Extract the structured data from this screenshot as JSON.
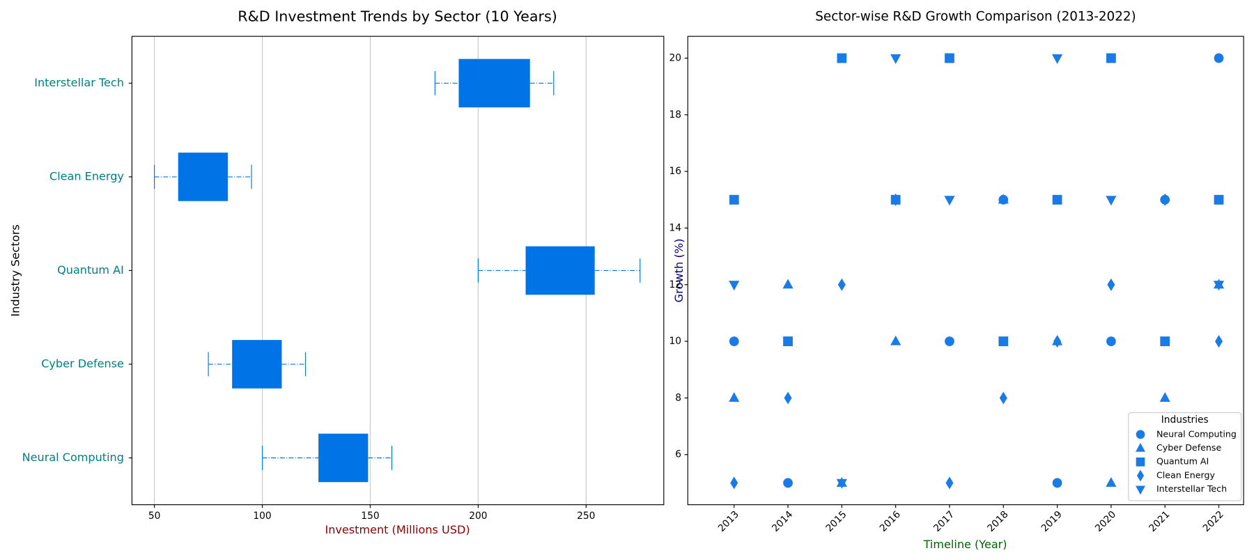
{
  "chart_data": [
    {
      "type": "box",
      "title": "R&D Investment Trends by Sector (10 Years)",
      "x_label": "Investment (Millions USD)",
      "y_label": "Industry Sectors",
      "categories": [
        "Neural Computing",
        "Cyber Defense",
        "Quantum AI",
        "Clean Energy",
        "Interstellar Tech"
      ],
      "min": [
        100,
        75,
        200,
        50,
        180
      ],
      "q1": [
        126,
        86,
        222,
        61,
        191
      ],
      "q3": [
        149,
        109,
        254,
        84,
        224
      ],
      "max": [
        160,
        120,
        275,
        95,
        235
      ],
      "color": "#0073e6",
      "xlim": [
        39.6,
        286
      ],
      "xticks": [
        50,
        100,
        150,
        200,
        250
      ],
      "grid": true
    },
    {
      "type": "scatter",
      "title": "Sector-wise R&D Growth Comparison (2013-2022)",
      "x_label": "Timeline (Year)",
      "y_label": "Growth (%)",
      "x": [
        2013,
        2014,
        2015,
        2016,
        2017,
        2018,
        2019,
        2020,
        2021,
        2022
      ],
      "legend_title": "Industries",
      "legend": "lower right",
      "series": [
        {
          "name": "Neural Computing",
          "color": "#1a7ae6",
          "marker": "circle",
          "values": [
            10,
            5,
            null,
            null,
            10,
            15,
            5,
            10,
            15,
            20
          ]
        },
        {
          "name": "Cyber Defense",
          "color": "#1a7ae6",
          "marker": "triangle-up",
          "values": [
            8,
            12,
            5,
            10,
            null,
            15,
            10,
            5,
            8,
            12
          ]
        },
        {
          "name": "Quantum AI",
          "color": "#1a7ae6",
          "marker": "square",
          "values": [
            15,
            10,
            20,
            15,
            20,
            10,
            15,
            20,
            10,
            15
          ]
        },
        {
          "name": "Clean Energy",
          "color": "#1a7ae6",
          "marker": "diamond",
          "values": [
            5,
            8,
            12,
            15,
            5,
            8,
            10,
            12,
            15,
            10
          ]
        },
        {
          "name": "Interstellar Tech",
          "color": "#1a7ae6",
          "marker": "triangle-down",
          "values": [
            12,
            null,
            5,
            20,
            15,
            null,
            20,
            15,
            null,
            12
          ]
        }
      ],
      "xlim": [
        2012.14,
        2022.46
      ],
      "xticks": [
        2013,
        2014,
        2015,
        2016,
        2017,
        2018,
        2019,
        2020,
        2021,
        2022
      ],
      "ylim": [
        4.23,
        20.77
      ],
      "yticks": [
        6,
        8,
        10,
        12,
        14,
        16,
        18,
        20
      ]
    }
  ]
}
